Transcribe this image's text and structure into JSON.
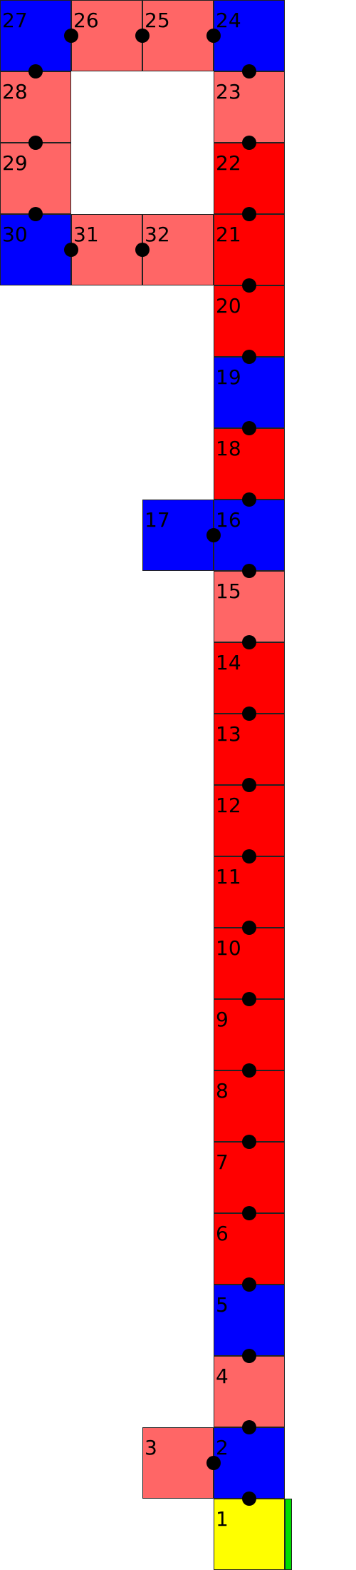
{
  "colors": {
    "blue": "#0000ff",
    "light_red": "#ff6666",
    "red": "#ff0000",
    "yellow": "#ffff00",
    "green": "#00dd00"
  },
  "cells": [
    {
      "label": "1",
      "color": "yellow"
    },
    {
      "label": "2",
      "color": "blue"
    },
    {
      "label": "3",
      "color": "light_red"
    },
    {
      "label": "4",
      "color": "light_red"
    },
    {
      "label": "5",
      "color": "blue"
    },
    {
      "label": "6",
      "color": "red"
    },
    {
      "label": "7",
      "color": "red"
    },
    {
      "label": "8",
      "color": "red"
    },
    {
      "label": "9",
      "color": "red"
    },
    {
      "label": "10",
      "color": "red"
    },
    {
      "label": "11",
      "color": "red"
    },
    {
      "label": "12",
      "color": "red"
    },
    {
      "label": "13",
      "color": "red"
    },
    {
      "label": "14",
      "color": "red"
    },
    {
      "label": "15",
      "color": "light_red"
    },
    {
      "label": "16",
      "color": "blue"
    },
    {
      "label": "17",
      "color": "blue"
    },
    {
      "label": "18",
      "color": "red"
    },
    {
      "label": "19",
      "color": "blue"
    },
    {
      "label": "20",
      "color": "red"
    },
    {
      "label": "21",
      "color": "red"
    },
    {
      "label": "22",
      "color": "red"
    },
    {
      "label": "23",
      "color": "light_red"
    },
    {
      "label": "24",
      "color": "blue"
    },
    {
      "label": "25",
      "color": "light_red"
    },
    {
      "label": "26",
      "color": "light_red"
    },
    {
      "label": "27",
      "color": "blue"
    },
    {
      "label": "28",
      "color": "light_red"
    },
    {
      "label": "29",
      "color": "light_red"
    },
    {
      "label": "30",
      "color": "blue"
    },
    {
      "label": "31",
      "color": "light_red"
    },
    {
      "label": "32",
      "color": "light_red"
    }
  ],
  "goal_marker": {
    "color": "green"
  }
}
